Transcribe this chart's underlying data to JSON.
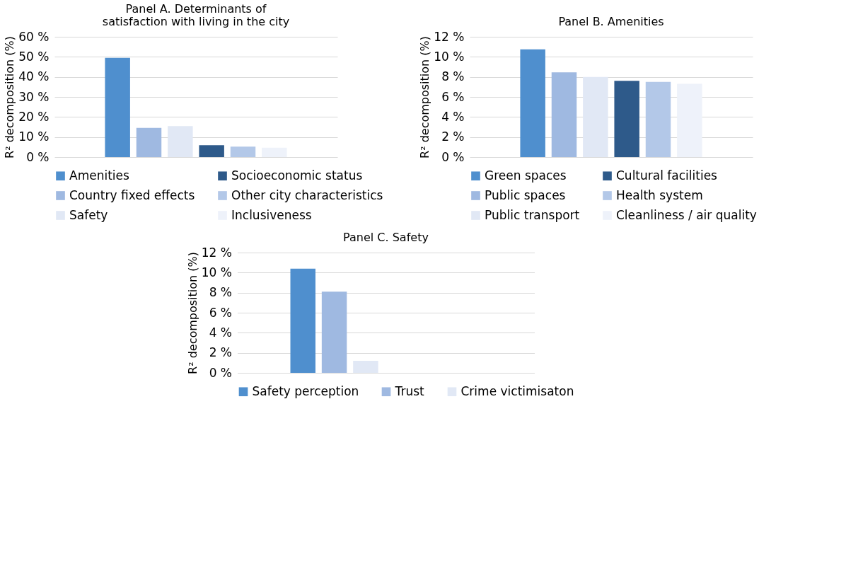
{
  "chart_data": [
    {
      "type": "bar",
      "title": "Panel A. Determinants of satisfaction with living in the city",
      "ylabel": "R² decomposition (%)",
      "categories": [
        null
      ],
      "ylim": [
        0,
        60
      ],
      "yticks": [
        {
          "value": 0,
          "label": "0 %"
        },
        {
          "value": 10,
          "label": "10 %"
        },
        {
          "value": 20,
          "label": "20 %"
        },
        {
          "value": 30,
          "label": "30 %"
        },
        {
          "value": 40,
          "label": "40 %"
        },
        {
          "value": 50,
          "label": "50 %"
        },
        {
          "value": 60,
          "label": "60 %"
        }
      ],
      "grid": "y",
      "legend": "bottom",
      "series": [
        {
          "name": "Amenities",
          "color": "#4f8fce",
          "values": [
            49.5
          ]
        },
        {
          "name": "Country fixed effects",
          "color": "#9fb9e1",
          "values": [
            14.6
          ]
        },
        {
          "name": "Safety",
          "color": "#e1e8f5",
          "values": [
            15.4
          ]
        },
        {
          "name": "Socioeconomic status",
          "color": "#2e5a8a",
          "values": [
            5.9
          ]
        },
        {
          "name": "Other city characteristics",
          "color": "#b3c8e8",
          "values": [
            5.2
          ]
        },
        {
          "name": "Inclusiveness",
          "color": "#eef2fa",
          "values": [
            4.7
          ]
        }
      ]
    },
    {
      "type": "bar",
      "title": "Panel B. Amenities",
      "ylabel": "R² decomposition (%)",
      "categories": [
        null
      ],
      "ylim": [
        0,
        12
      ],
      "yticks": [
        {
          "value": 0,
          "label": "0 %"
        },
        {
          "value": 2,
          "label": "2 %"
        },
        {
          "value": 4,
          "label": "4 %"
        },
        {
          "value": 6,
          "label": "6 %"
        },
        {
          "value": 8,
          "label": "8 %"
        },
        {
          "value": 10,
          "label": "10 %"
        },
        {
          "value": 12,
          "label": "12 %"
        }
      ],
      "grid": "y",
      "legend": "bottom",
      "series": [
        {
          "name": "Green spaces",
          "color": "#4f8fce",
          "values": [
            10.75
          ]
        },
        {
          "name": "Public spaces",
          "color": "#9fb9e1",
          "values": [
            8.45
          ]
        },
        {
          "name": "Public transport",
          "color": "#e1e8f5",
          "values": [
            8.0
          ]
        },
        {
          "name": "Cultural facilities",
          "color": "#2e5a8a",
          "values": [
            7.6
          ]
        },
        {
          "name": "Health system",
          "color": "#b3c8e8",
          "values": [
            7.5
          ]
        },
        {
          "name": "Cleanliness / air quality",
          "color": "#eef2fa",
          "values": [
            7.3
          ]
        }
      ]
    },
    {
      "type": "bar",
      "title": "Panel C. Safety",
      "ylabel": "R² decomposition (%)",
      "categories": [
        null
      ],
      "ylim": [
        0,
        12
      ],
      "yticks": [
        {
          "value": 0,
          "label": "0 %"
        },
        {
          "value": 2,
          "label": "2 %"
        },
        {
          "value": 4,
          "label": "4 %"
        },
        {
          "value": 6,
          "label": "6 %"
        },
        {
          "value": 8,
          "label": "8 %"
        },
        {
          "value": 10,
          "label": "10 %"
        },
        {
          "value": 12,
          "label": "12 %"
        }
      ],
      "grid": "y",
      "legend": "bottom",
      "series": [
        {
          "name": "Safety perception",
          "color": "#4f8fce",
          "values": [
            10.4
          ]
        },
        {
          "name": "Trust",
          "color": "#9fb9e1",
          "values": [
            8.1
          ]
        },
        {
          "name": "Crime victimisaton",
          "color": "#e1e8f5",
          "values": [
            1.2
          ]
        }
      ]
    }
  ]
}
